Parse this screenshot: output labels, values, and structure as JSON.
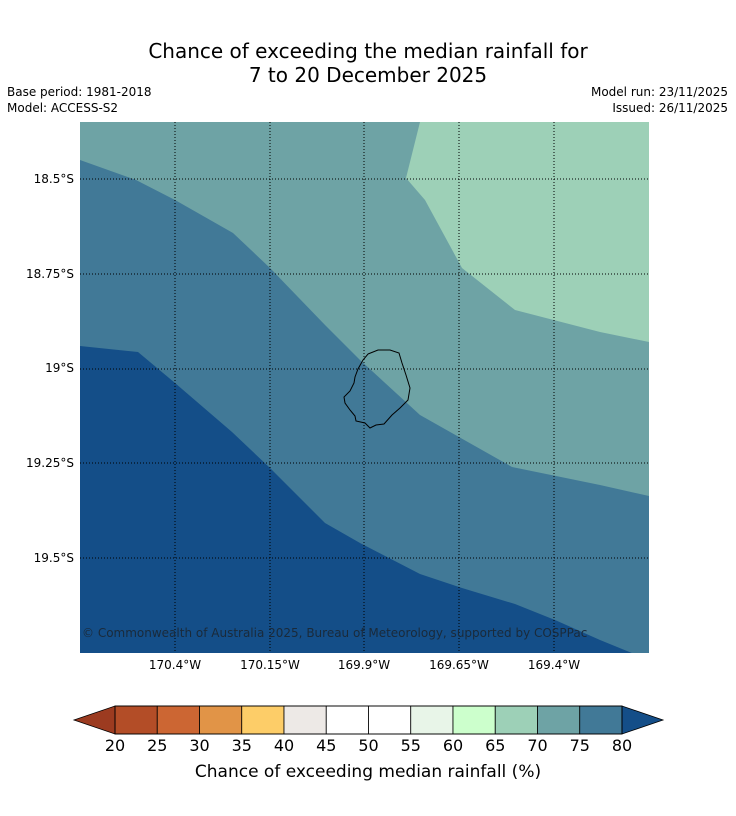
{
  "title_line1": "Chance of exceeding the median rainfall for",
  "title_line2": "7 to 20 December 2025",
  "base_period": "Base period: 1981-2018",
  "model": "Model: ACCESS-S2",
  "model_run": "Model run: 23/11/2025",
  "issued": "Issued: 26/11/2025",
  "copyright": "© Commonwealth of Australia 2025, Bureau of Meteorology, supported by COSPPac",
  "lat_labels": [
    "18.5°S",
    "18.75°S",
    "19°S",
    "19.25°S",
    "19.5°S"
  ],
  "lon_labels": [
    "170.4°W",
    "170.15°W",
    "169.9°W",
    "169.65°W",
    "169.4°W"
  ],
  "colorbar": {
    "title": "Chance of exceeding median rainfall (%)",
    "ticks": [
      "20",
      "25",
      "30",
      "35",
      "40",
      "45",
      "50",
      "55",
      "60",
      "65",
      "70",
      "75",
      "80"
    ],
    "colors": [
      "#b34d27",
      "#cc6633",
      "#e19447",
      "#fdcd68",
      "#ede9e6",
      "#ffffff",
      "#ffffff",
      "#e8f5e8",
      "#ccffcc",
      "#9dd0b7",
      "#6ea3a5",
      "#417997"
    ],
    "under_color": "#9c3b20",
    "over_color": "#144e88"
  },
  "chart_data": {
    "type": "map",
    "title": "Chance of exceeding the median rainfall for 7 to 20 December 2025",
    "lon_range": [
      170.65,
      169.15
    ],
    "lat_range": [
      -18.35,
      -19.75
    ],
    "contour_bands": [
      {
        "range": "65-70%",
        "color": "#9dd0b7",
        "location": "northeast"
      },
      {
        "range": "70-75%",
        "color": "#6ea3a5",
        "location": "north/centre"
      },
      {
        "range": "75-80%",
        "color": "#417997",
        "location": "centre/southwest"
      },
      {
        "range": ">80%",
        "color": "#144e88",
        "location": "southwest"
      }
    ]
  }
}
